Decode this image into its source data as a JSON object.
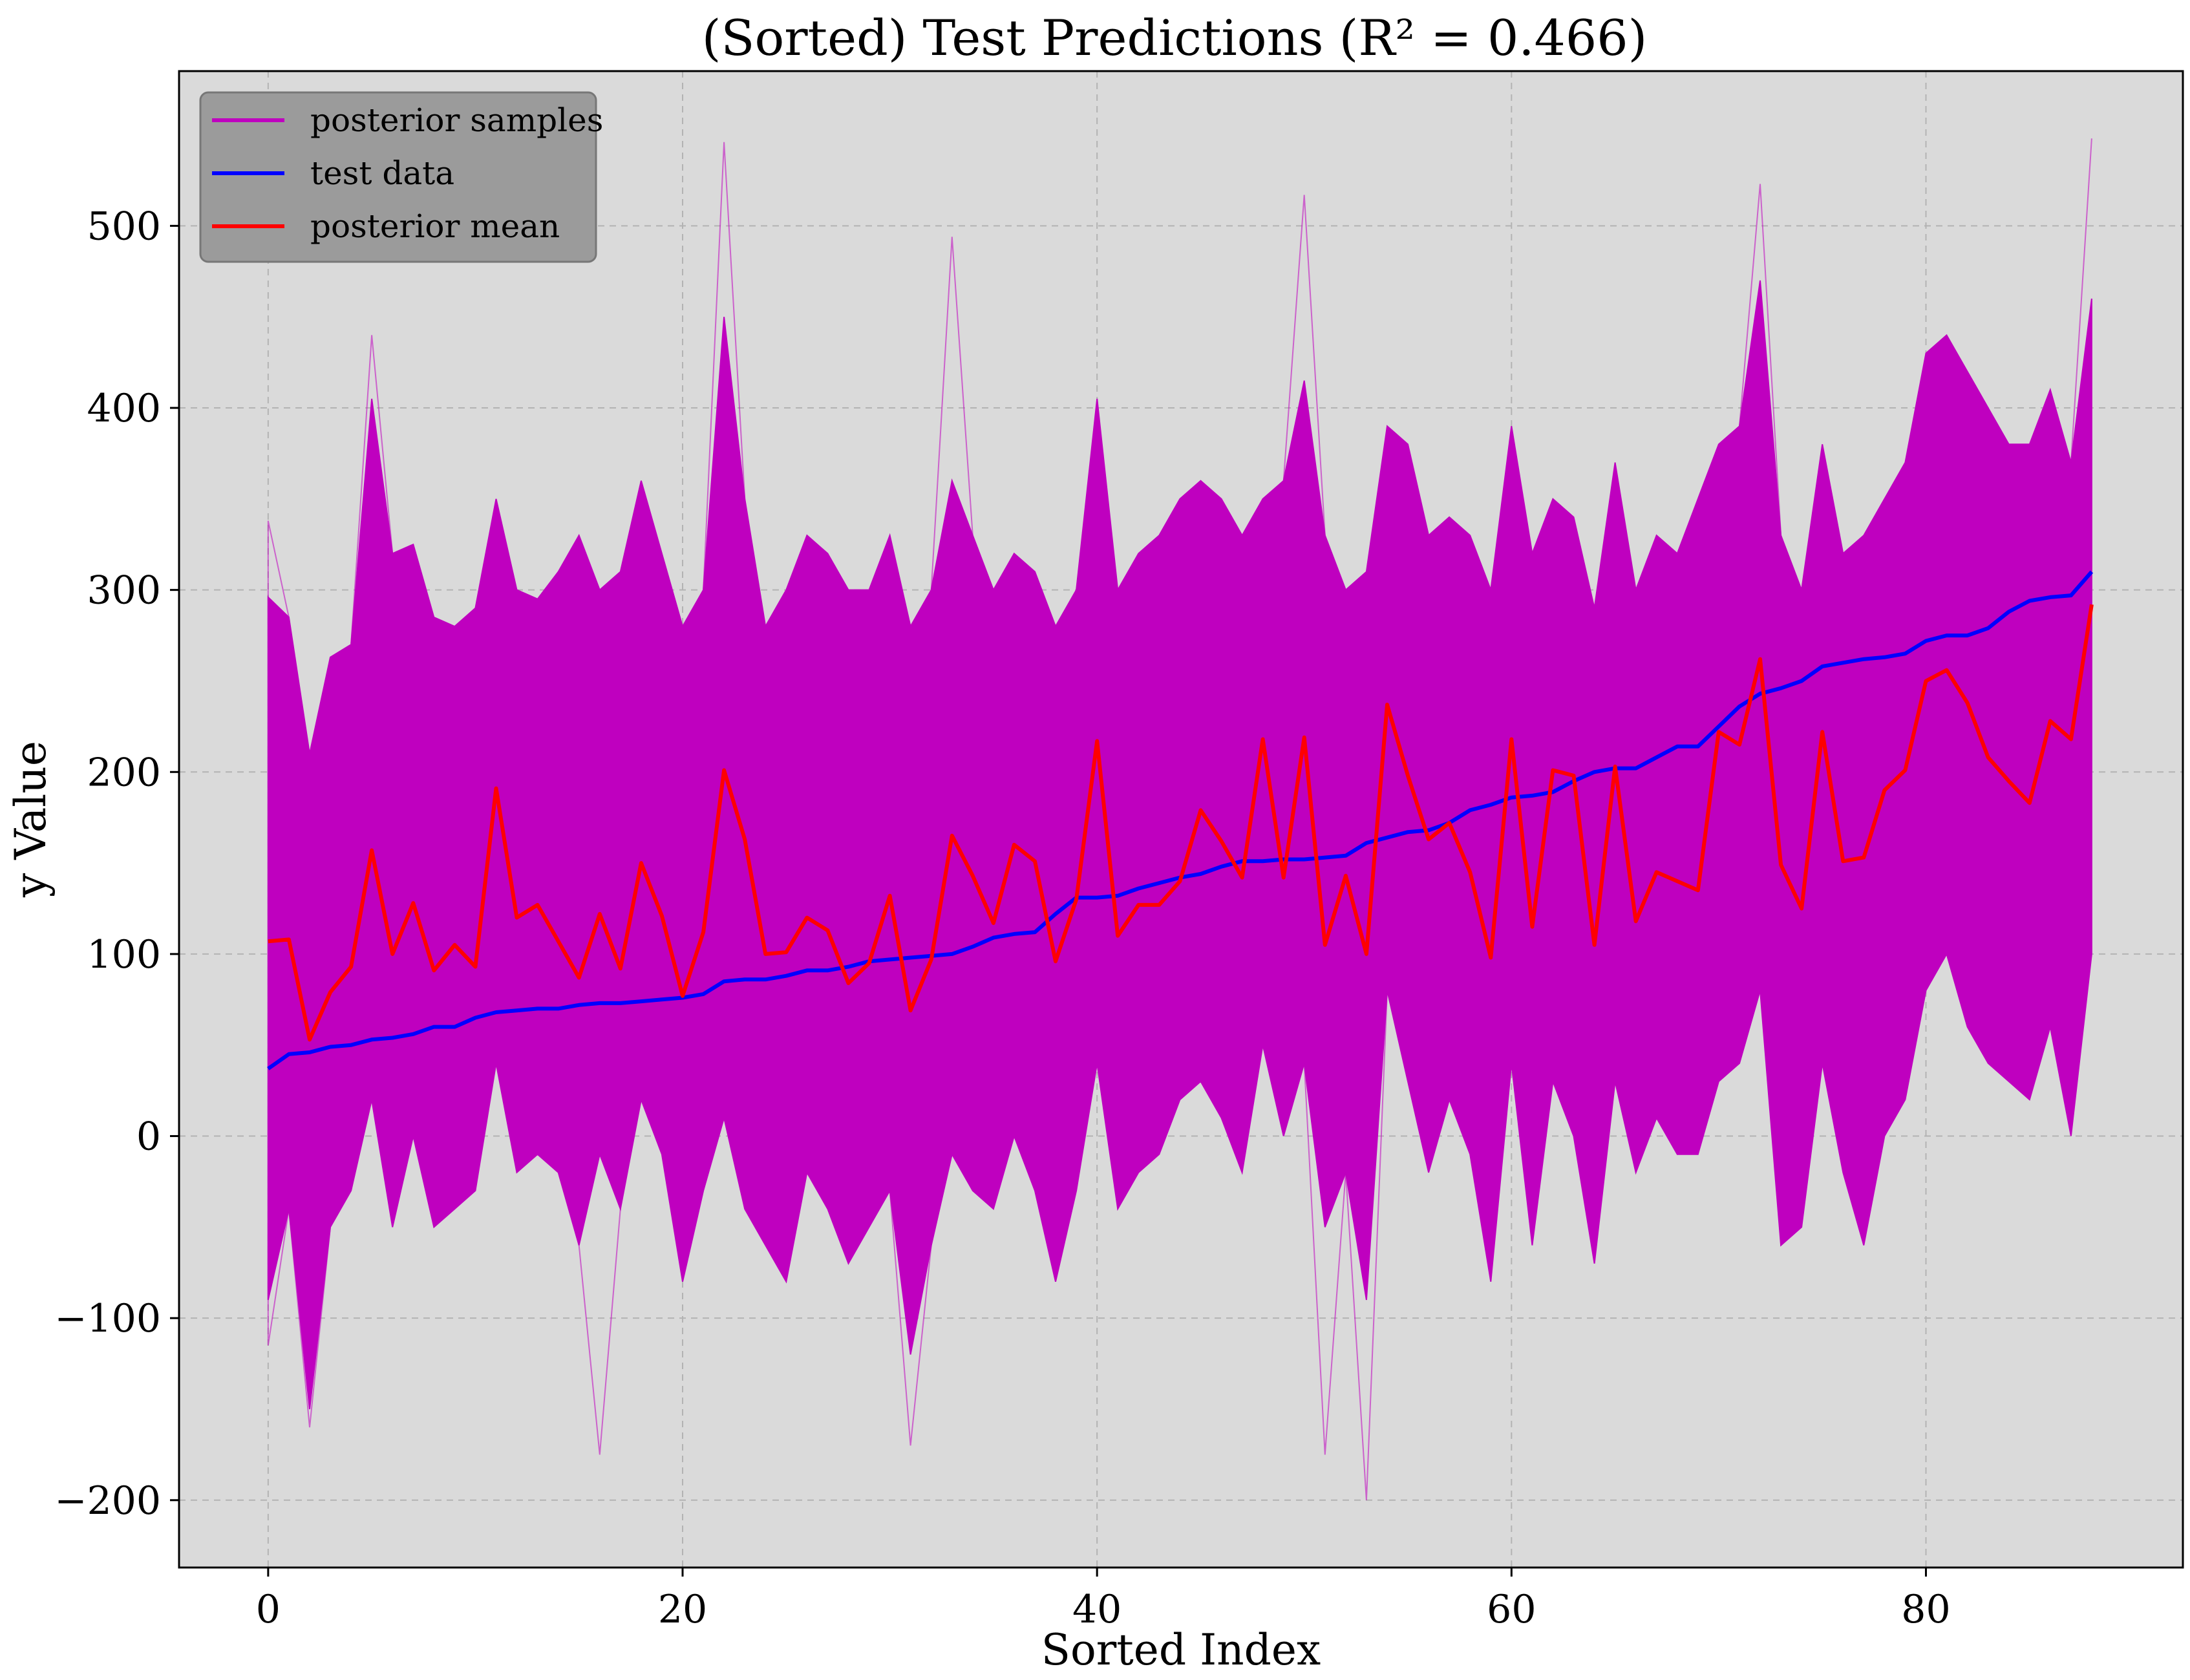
{
  "chart_data": {
    "type": "line",
    "title": "(Sorted) Test Predictions (R² = 0.466)",
    "xlabel": "Sorted Index",
    "ylabel": "y Value",
    "xlim": [
      -4.3,
      92.4
    ],
    "ylim": [
      -237,
      585
    ],
    "xticks": [
      0,
      20,
      40,
      60,
      80
    ],
    "yticks": [
      -200,
      -100,
      0,
      100,
      200,
      300,
      400,
      500
    ],
    "ytick_labels": [
      "−200",
      "−100",
      "0",
      "100",
      "200",
      "300",
      "400",
      "500"
    ],
    "grid": true,
    "legend_position": "top-left",
    "background": "#dadada",
    "series": [
      {
        "name": "posterior samples",
        "color": "#bf00bf",
        "kind": "band",
        "upper": [
          296,
          285,
          210,
          263,
          270,
          405,
          320,
          325,
          285,
          280,
          290,
          350,
          300,
          295,
          310,
          330,
          300,
          310,
          360,
          320,
          280,
          300,
          450,
          350,
          280,
          300,
          330,
          320,
          300,
          300,
          330,
          280,
          300,
          360,
          330,
          300,
          320,
          310,
          280,
          300,
          405,
          300,
          320,
          330,
          350,
          360,
          350,
          330,
          350,
          360,
          415,
          330,
          300,
          310,
          390,
          380,
          330,
          340,
          330,
          300,
          390,
          320,
          350,
          340,
          290,
          370,
          300,
          330,
          320,
          350,
          380,
          390,
          470,
          330,
          300,
          380,
          320,
          330,
          350,
          370,
          430,
          440,
          420,
          400,
          380,
          380,
          410,
          370,
          460
        ],
        "lower": [
          -90,
          -40,
          -150,
          -50,
          -30,
          20,
          -50,
          0,
          -50,
          -40,
          -30,
          40,
          -20,
          -10,
          -20,
          -60,
          -10,
          -40,
          20,
          -10,
          -80,
          -30,
          10,
          -40,
          -60,
          -80,
          -20,
          -40,
          -70,
          -50,
          -30,
          -120,
          -60,
          -10,
          -30,
          -40,
          0,
          -30,
          -80,
          -30,
          40,
          -40,
          -20,
          -10,
          20,
          30,
          10,
          -20,
          50,
          0,
          40,
          -50,
          -20,
          -90,
          80,
          30,
          -20,
          20,
          -10,
          -80,
          40,
          -60,
          30,
          0,
          -70,
          30,
          -20,
          10,
          -10,
          -10,
          30,
          40,
          80,
          -60,
          -50,
          40,
          -20,
          -60,
          0,
          20,
          80,
          100,
          60,
          40,
          30,
          20,
          60,
          0,
          100
        ],
        "extremes": [
          [
            0,
            338
          ],
          [
            0,
            -115
          ],
          [
            5,
            440
          ],
          [
            2,
            -160
          ],
          [
            16,
            -175
          ],
          [
            22,
            546
          ],
          [
            33,
            494
          ],
          [
            50,
            517
          ],
          [
            53,
            -200
          ],
          [
            72,
            523
          ],
          [
            88,
            548
          ],
          [
            31,
            -170
          ],
          [
            51,
            -175
          ]
        ]
      },
      {
        "name": "test data",
        "color": "#0000ff",
        "kind": "line",
        "values": [
          37,
          45,
          46,
          49,
          50,
          53,
          54,
          56,
          60,
          60,
          65,
          68,
          69,
          70,
          70,
          72,
          73,
          73,
          74,
          75,
          76,
          78,
          85,
          86,
          86,
          88,
          91,
          91,
          93,
          96,
          97,
          98,
          99,
          100,
          104,
          109,
          111,
          112,
          122,
          131,
          131,
          132,
          136,
          139,
          142,
          144,
          148,
          151,
          151,
          152,
          152,
          153,
          154,
          161,
          164,
          167,
          168,
          172,
          179,
          182,
          186,
          187,
          189,
          195,
          200,
          202,
          202,
          208,
          214,
          214,
          225,
          236,
          243,
          246,
          250,
          258,
          260,
          262,
          263,
          265,
          272,
          275,
          275,
          279,
          288,
          294,
          296,
          297,
          310
        ]
      },
      {
        "name": "posterior mean",
        "color": "#ff0000",
        "kind": "line",
        "values": [
          107,
          108,
          53,
          79,
          93,
          157,
          100,
          128,
          91,
          105,
          93,
          191,
          120,
          127,
          107,
          87,
          122,
          92,
          150,
          121,
          77,
          112,
          201,
          163,
          100,
          101,
          120,
          113,
          84,
          95,
          132,
          69,
          97,
          165,
          143,
          117,
          160,
          151,
          96,
          130,
          217,
          110,
          127,
          127,
          140,
          179,
          162,
          142,
          218,
          142,
          219,
          105,
          143,
          100,
          237,
          198,
          163,
          172,
          145,
          98,
          218,
          115,
          201,
          198,
          105,
          203,
          118,
          145,
          140,
          135,
          222,
          215,
          262,
          149,
          125,
          222,
          151,
          153,
          190,
          201,
          250,
          256,
          238,
          208,
          195,
          183,
          228,
          218,
          292
        ]
      }
    ]
  }
}
